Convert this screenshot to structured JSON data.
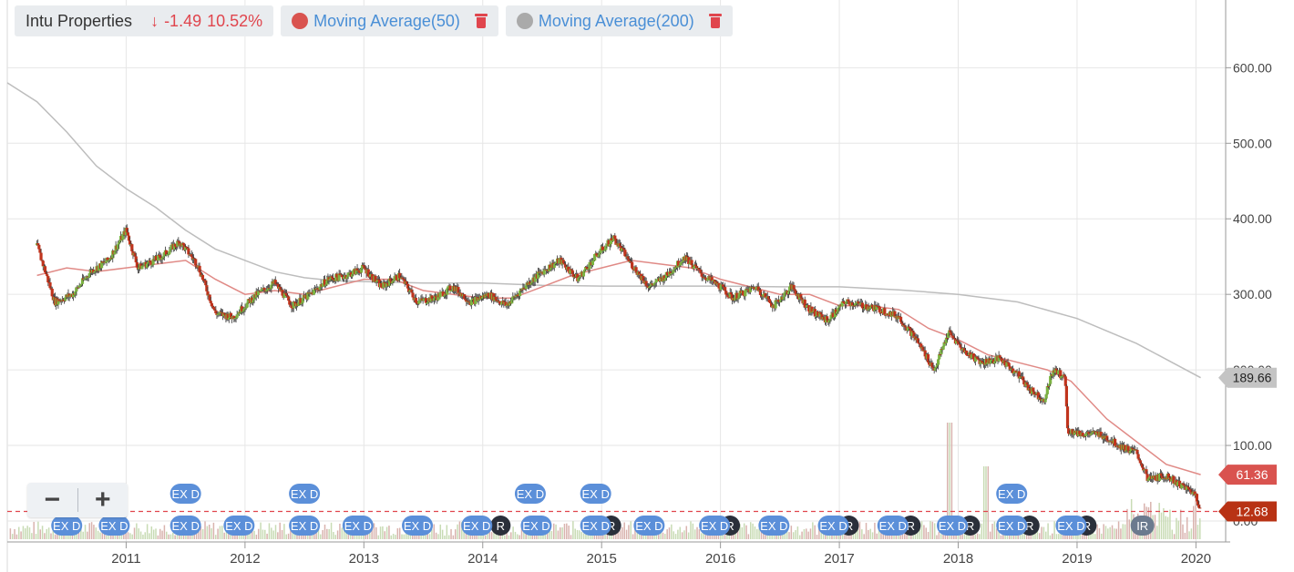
{
  "legend": {
    "symbol": "Intu Properties",
    "change_arrow": "↓",
    "change": "-1.49",
    "change_percent": "10.52%",
    "indicators": [
      {
        "label": "Moving Average(50)",
        "color": "#d9534f"
      },
      {
        "label": "Moving Average(200)",
        "color": "#aaaaaa"
      }
    ]
  },
  "zoom": {
    "minus": "−",
    "plus": "+"
  },
  "colors": {
    "up": "#7cb342",
    "down": "#c0341d",
    "ma50": "#e08a86",
    "ma200": "#bdbdbd",
    "price_line": "#e0454d",
    "grid": "#e6e6e6"
  },
  "chart_data": {
    "type": "candlestick",
    "title": "",
    "x_ticks": [
      "2011",
      "2012",
      "2013",
      "2014",
      "2015",
      "2016",
      "2017",
      "2018",
      "2019",
      "2020"
    ],
    "y_ticks": [
      "600.00",
      "500.00",
      "400.00",
      "300.00",
      "200.00",
      "100.00",
      "0.00"
    ],
    "ylim": [
      0,
      680
    ],
    "grid": true,
    "price_series": {
      "name": "Intu Properties",
      "points": [
        [
          2010.25,
          365
        ],
        [
          2010.4,
          290
        ],
        [
          2010.55,
          300
        ],
        [
          2010.7,
          330
        ],
        [
          2010.85,
          345
        ],
        [
          2011.0,
          385
        ],
        [
          2011.1,
          335
        ],
        [
          2011.3,
          350
        ],
        [
          2011.45,
          370
        ],
        [
          2011.6,
          340
        ],
        [
          2011.75,
          275
        ],
        [
          2011.9,
          270
        ],
        [
          2012.1,
          300
        ],
        [
          2012.25,
          315
        ],
        [
          2012.4,
          285
        ],
        [
          2012.55,
          300
        ],
        [
          2012.7,
          320
        ],
        [
          2012.85,
          325
        ],
        [
          2013.0,
          335
        ],
        [
          2013.15,
          310
        ],
        [
          2013.3,
          325
        ],
        [
          2013.45,
          290
        ],
        [
          2013.6,
          295
        ],
        [
          2013.75,
          310
        ],
        [
          2013.9,
          290
        ],
        [
          2014.05,
          300
        ],
        [
          2014.2,
          285
        ],
        [
          2014.35,
          310
        ],
        [
          2014.5,
          330
        ],
        [
          2014.65,
          345
        ],
        [
          2014.8,
          320
        ],
        [
          2014.95,
          350
        ],
        [
          2015.1,
          375
        ],
        [
          2015.25,
          340
        ],
        [
          2015.4,
          310
        ],
        [
          2015.55,
          325
        ],
        [
          2015.7,
          350
        ],
        [
          2015.85,
          325
        ],
        [
          2016.0,
          310
        ],
        [
          2016.1,
          295
        ],
        [
          2016.3,
          310
        ],
        [
          2016.45,
          285
        ],
        [
          2016.6,
          310
        ],
        [
          2016.75,
          280
        ],
        [
          2016.9,
          265
        ],
        [
          2017.05,
          290
        ],
        [
          2017.2,
          285
        ],
        [
          2017.35,
          280
        ],
        [
          2017.5,
          270
        ],
        [
          2017.65,
          240
        ],
        [
          2017.8,
          200
        ],
        [
          2017.92,
          250
        ],
        [
          2018.05,
          225
        ],
        [
          2018.2,
          210
        ],
        [
          2018.35,
          215
        ],
        [
          2018.5,
          195
        ],
        [
          2018.6,
          175
        ],
        [
          2018.72,
          160
        ],
        [
          2018.8,
          200
        ],
        [
          2018.9,
          190
        ],
        [
          2018.92,
          120
        ],
        [
          2019.05,
          115
        ],
        [
          2019.2,
          115
        ],
        [
          2019.35,
          100
        ],
        [
          2019.5,
          90
        ],
        [
          2019.6,
          55
        ],
        [
          2019.75,
          60
        ],
        [
          2019.9,
          45
        ],
        [
          2020.0,
          35
        ],
        [
          2020.04,
          13
        ]
      ]
    },
    "moving_average_50": {
      "name": "Moving Average(50)",
      "points": [
        [
          2010.25,
          325
        ],
        [
          2010.5,
          335
        ],
        [
          2010.75,
          330
        ],
        [
          2011.0,
          335
        ],
        [
          2011.25,
          340
        ],
        [
          2011.5,
          345
        ],
        [
          2011.75,
          320
        ],
        [
          2012.0,
          300
        ],
        [
          2012.25,
          305
        ],
        [
          2012.5,
          300
        ],
        [
          2012.75,
          310
        ],
        [
          2013.0,
          320
        ],
        [
          2013.25,
          320
        ],
        [
          2013.5,
          305
        ],
        [
          2013.75,
          300
        ],
        [
          2014.0,
          295
        ],
        [
          2014.25,
          295
        ],
        [
          2014.5,
          310
        ],
        [
          2014.75,
          325
        ],
        [
          2015.0,
          335
        ],
        [
          2015.25,
          345
        ],
        [
          2015.5,
          340
        ],
        [
          2015.75,
          335
        ],
        [
          2016.0,
          320
        ],
        [
          2016.25,
          310
        ],
        [
          2016.5,
          300
        ],
        [
          2016.75,
          300
        ],
        [
          2017.0,
          285
        ],
        [
          2017.25,
          285
        ],
        [
          2017.5,
          280
        ],
        [
          2017.75,
          255
        ],
        [
          2018.0,
          240
        ],
        [
          2018.25,
          220
        ],
        [
          2018.5,
          210
        ],
        [
          2018.75,
          200
        ],
        [
          2018.95,
          185
        ],
        [
          2019.25,
          135
        ],
        [
          2019.5,
          105
        ],
        [
          2019.75,
          75
        ],
        [
          2020.04,
          61.36
        ]
      ],
      "last_value": "61.36"
    },
    "moving_average_200": {
      "name": "Moving Average(200)",
      "points": [
        [
          2010.0,
          580
        ],
        [
          2010.25,
          555
        ],
        [
          2010.5,
          515
        ],
        [
          2010.75,
          470
        ],
        [
          2011.0,
          440
        ],
        [
          2011.25,
          415
        ],
        [
          2011.5,
          385
        ],
        [
          2011.75,
          360
        ],
        [
          2012.0,
          345
        ],
        [
          2012.25,
          330
        ],
        [
          2012.5,
          322
        ],
        [
          2012.75,
          318
        ],
        [
          2013.0,
          317
        ],
        [
          2013.5,
          315
        ],
        [
          2014.0,
          315
        ],
        [
          2014.5,
          312
        ],
        [
          2015.0,
          311
        ],
        [
          2015.5,
          311
        ],
        [
          2016.0,
          311
        ],
        [
          2016.5,
          310
        ],
        [
          2017.0,
          310
        ],
        [
          2017.5,
          306
        ],
        [
          2018.0,
          300
        ],
        [
          2018.5,
          290
        ],
        [
          2019.0,
          268
        ],
        [
          2019.5,
          235
        ],
        [
          2020.04,
          189.66
        ]
      ],
      "last_value": "189.66"
    },
    "last_price": "12.68",
    "events": {
      "row_lower": [
        {
          "x": 2010.5,
          "label": "EX D"
        },
        {
          "x": 2010.9,
          "label": "EX D"
        },
        {
          "x": 2011.5,
          "label": "EX D"
        },
        {
          "x": 2011.95,
          "label": "EX D"
        },
        {
          "x": 2012.5,
          "label": "EX D"
        },
        {
          "x": 2012.95,
          "label": "EX D"
        },
        {
          "x": 2013.45,
          "label": "EX D"
        },
        {
          "x": 2013.95,
          "label": "EX D"
        },
        {
          "x": 2014.45,
          "label": "EX D"
        },
        {
          "x": 2014.95,
          "label": "EX D"
        },
        {
          "x": 2015.4,
          "label": "EX D"
        },
        {
          "x": 2015.95,
          "label": "EX D"
        },
        {
          "x": 2016.45,
          "label": "EX D"
        },
        {
          "x": 2016.95,
          "label": "EX D"
        },
        {
          "x": 2017.45,
          "label": "EX D"
        },
        {
          "x": 2017.95,
          "label": "EX D"
        },
        {
          "x": 2018.45,
          "label": "EX D"
        },
        {
          "x": 2018.95,
          "label": "EX D"
        }
      ],
      "row_upper": [
        {
          "x": 2011.5,
          "label": "EX D"
        },
        {
          "x": 2012.5,
          "label": "EX D"
        },
        {
          "x": 2014.4,
          "label": "EX D"
        },
        {
          "x": 2014.95,
          "label": "EX D"
        },
        {
          "x": 2018.45,
          "label": "EX D"
        }
      ],
      "r_badges": [
        {
          "x": 2014.15,
          "label": "R"
        },
        {
          "x": 2015.08,
          "label": "R"
        },
        {
          "x": 2016.08,
          "label": "R"
        },
        {
          "x": 2017.08,
          "label": "R"
        },
        {
          "x": 2017.6,
          "label": "R"
        },
        {
          "x": 2018.1,
          "label": "R"
        },
        {
          "x": 2018.6,
          "label": "R"
        },
        {
          "x": 2019.08,
          "label": "R"
        }
      ],
      "ir_badge": {
        "x": 2019.55,
        "label": "IR"
      }
    }
  }
}
